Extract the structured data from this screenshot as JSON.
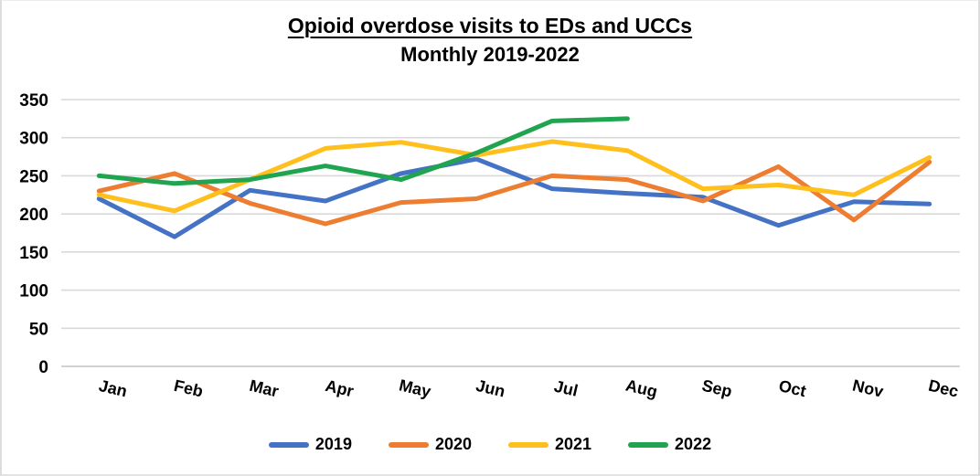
{
  "title": "Opioid overdose visits to EDs and UCCs",
  "subtitle": "Monthly 2019-2022",
  "chart_data": {
    "type": "line",
    "categories": [
      "Jan",
      "Feb",
      "Mar",
      "Apr",
      "May",
      "Jun",
      "Jul",
      "Aug",
      "Sep",
      "Oct",
      "Nov",
      "Dec"
    ],
    "series": [
      {
        "name": "2019",
        "color": "#4472C4",
        "values": [
          220,
          170,
          231,
          217,
          253,
          272,
          233,
          227,
          222,
          185,
          216,
          213
        ]
      },
      {
        "name": "2020",
        "color": "#ED7D31",
        "values": [
          230,
          253,
          214,
          187,
          215,
          220,
          250,
          245,
          217,
          262,
          192,
          268
        ]
      },
      {
        "name": "2021",
        "color": "#FFC01E",
        "values": [
          225,
          204,
          245,
          286,
          294,
          277,
          295,
          283,
          233,
          238,
          225,
          274
        ]
      },
      {
        "name": "2022",
        "color": "#21A44F",
        "values": [
          250,
          240,
          245,
          263,
          245,
          280,
          322,
          325,
          null,
          null,
          null,
          null
        ]
      }
    ],
    "title": "Opioid overdose visits to EDs and UCCs",
    "subtitle": "Monthly 2019-2022",
    "xlabel": "",
    "ylabel": "",
    "ylim": [
      0,
      350
    ],
    "yticks": [
      0,
      50,
      100,
      150,
      200,
      250,
      300,
      350
    ],
    "grid": true,
    "legend_position": "bottom"
  },
  "colors": {
    "gridline": "#d9d9d9",
    "baseline": "#c3c3c3",
    "axis_text": "#000000",
    "background": "#ffffff"
  }
}
